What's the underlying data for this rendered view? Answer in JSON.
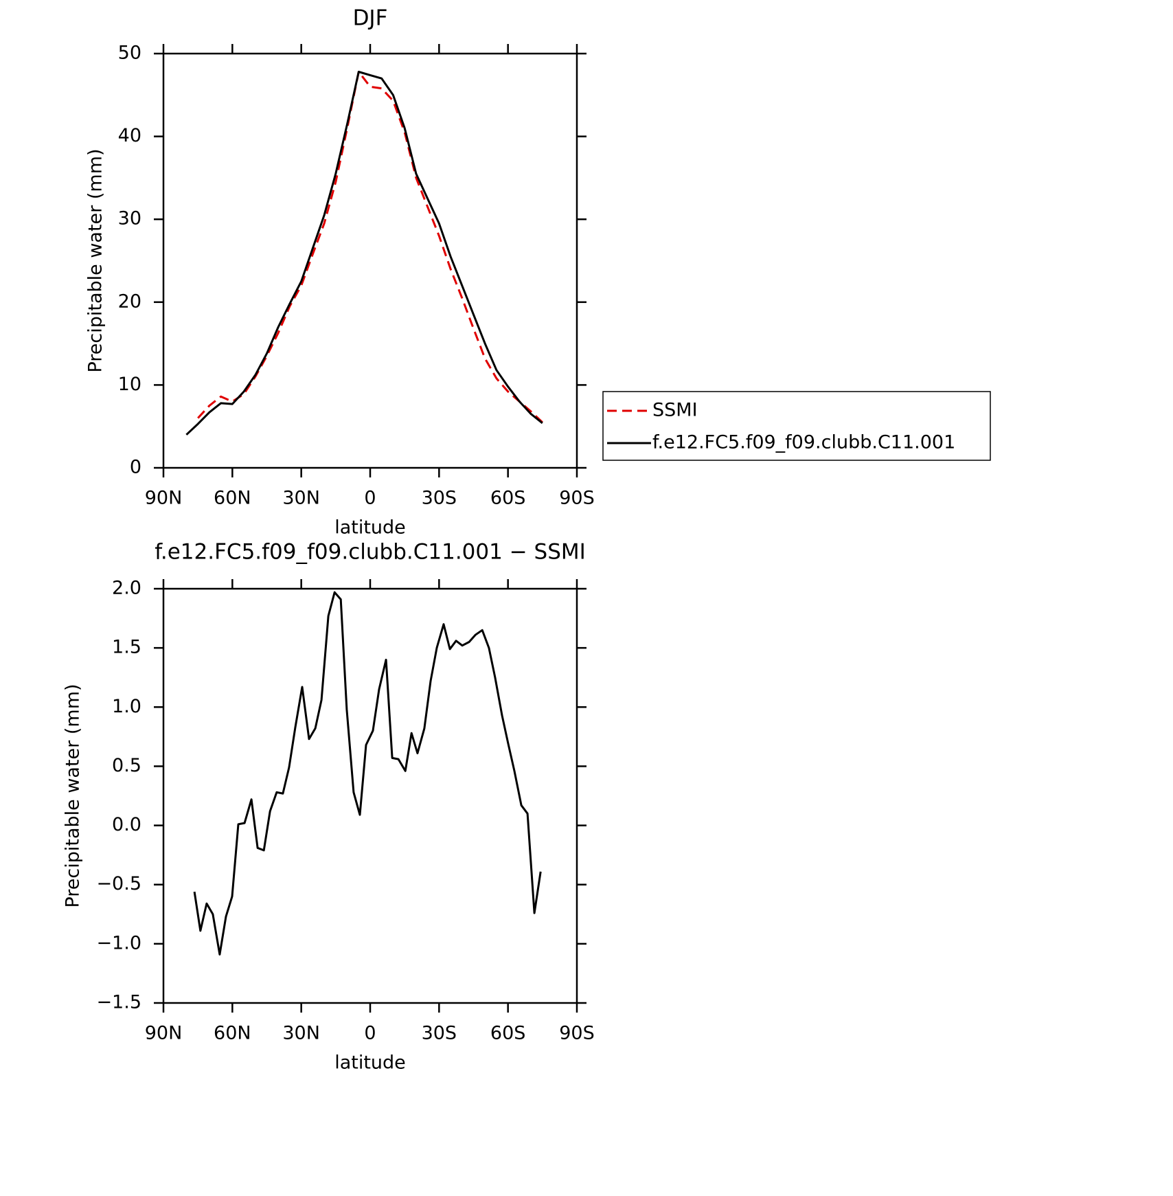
{
  "chart_data": [
    {
      "type": "line",
      "title": "DJF",
      "xlabel": "latitude",
      "ylabel": "Precipitable water (mm)",
      "x": [
        80,
        75,
        70,
        65,
        60,
        55,
        50,
        45,
        40,
        35,
        30,
        25,
        20,
        15,
        10,
        5,
        0,
        -5,
        -10,
        -15,
        -20,
        -25,
        -30,
        -35,
        -40,
        -45,
        -50,
        -55,
        -60,
        -65,
        -70,
        -75
      ],
      "series": [
        {
          "name": "SSMI",
          "color": "#e00000",
          "dash": "dashed",
          "values": [
            null,
            6.0,
            7.5,
            8.6,
            8.0,
            8.9,
            11.0,
            13.5,
            16.3,
            19.5,
            22.0,
            25.8,
            29.5,
            34.5,
            41.0,
            47.8,
            46.0,
            45.8,
            44.3,
            40.5,
            35.0,
            31.5,
            28.0,
            24.0,
            20.5,
            16.8,
            13.2,
            10.8,
            9.2,
            8.0,
            6.8,
            5.5
          ]
        },
        {
          "name": "f.e12.FC5.f09_f09.clubb.C11.001",
          "color": "#000000",
          "dash": "solid",
          "values": [
            4.0,
            5.3,
            6.7,
            7.8,
            7.7,
            9.2,
            11.2,
            13.8,
            17.0,
            19.8,
            22.5,
            26.5,
            30.5,
            35.5,
            41.5,
            47.8,
            47.4,
            47.0,
            45.0,
            41.0,
            35.5,
            32.5,
            29.5,
            25.5,
            22.0,
            18.5,
            15.0,
            11.8,
            9.8,
            8.0,
            6.5,
            5.4
          ]
        }
      ],
      "xlim": [
        90,
        -90
      ],
      "xticks": [
        {
          "value": 90,
          "label": "90N"
        },
        {
          "value": 60,
          "label": "60N"
        },
        {
          "value": 30,
          "label": "30N"
        },
        0,
        {
          "value": -30,
          "label": "30S"
        },
        {
          "value": -60,
          "label": "60S"
        },
        {
          "value": -90,
          "label": "90S"
        }
      ],
      "ylim": [
        0,
        50
      ],
      "yticks": [
        0,
        10,
        20,
        30,
        40,
        50
      ],
      "legend": "right"
    },
    {
      "type": "line",
      "title": "f.e12.FC5.f09_f09.clubb.C11.001 − SSMI",
      "xlabel": "latitude",
      "ylabel": "Precipitable water (mm)",
      "x": [
        76.5,
        73.9,
        71.2,
        68.5,
        65.5,
        62.8,
        60.1,
        57.4,
        54.7,
        51.7,
        49.0,
        46.3,
        43.6,
        40.7,
        38.0,
        35.3,
        32.6,
        29.6,
        26.6,
        23.9,
        21.2,
        18.2,
        15.5,
        12.8,
        10.2,
        7.2,
        4.5,
        1.8,
        -1.2,
        -3.9,
        -6.9,
        -9.6,
        -12.3,
        -15.3,
        -18.0,
        -20.6,
        -23.6,
        -26.3,
        -29.0,
        -32.0,
        -34.7,
        -37.4,
        -40.1,
        -43.1,
        -45.8,
        -48.8,
        -51.7,
        -54.4,
        -57.4,
        -60.1,
        -62.8,
        -65.8,
        -68.5,
        -71.5,
        -74.2
      ],
      "series": [
        {
          "color": "#000000",
          "dash": "solid",
          "values": [
            -0.56,
            -0.89,
            -0.66,
            -0.75,
            -1.09,
            -0.77,
            -0.6,
            0.01,
            0.02,
            0.22,
            -0.19,
            -0.21,
            0.12,
            0.28,
            0.27,
            0.49,
            0.83,
            1.17,
            0.73,
            0.82,
            1.06,
            1.77,
            1.97,
            1.91,
            0.98,
            0.28,
            0.09,
            0.68,
            0.8,
            1.15,
            1.4,
            0.57,
            0.56,
            0.46,
            0.78,
            0.61,
            0.82,
            1.22,
            1.5,
            1.7,
            1.49,
            1.56,
            1.52,
            1.55,
            1.61,
            1.65,
            1.5,
            1.25,
            0.93,
            0.69,
            0.46,
            0.17,
            0.1,
            -0.74,
            -0.39
          ]
        }
      ],
      "xlim": [
        90,
        -90
      ],
      "xticks": [
        {
          "value": 90,
          "label": "90N"
        },
        {
          "value": 60,
          "label": "60N"
        },
        {
          "value": 30,
          "label": "30N"
        },
        0,
        {
          "value": -30,
          "label": "30S"
        },
        {
          "value": -60,
          "label": "60S"
        },
        {
          "value": -90,
          "label": "90S"
        }
      ],
      "ylim": [
        -1.5,
        2.0
      ],
      "yticks": [
        {
          "value": -1.5,
          "label": "−1.5"
        },
        {
          "value": -1.0,
          "label": "−1.0"
        },
        {
          "value": -0.5,
          "label": "−0.5"
        },
        {
          "value": 0,
          "label": "0.0"
        },
        {
          "value": 0.5,
          "label": "0.5"
        },
        {
          "value": 1.0,
          "label": "1.0"
        },
        {
          "value": 1.5,
          "label": "1.5"
        },
        {
          "value": 2.0,
          "label": "2.0"
        }
      ]
    }
  ]
}
